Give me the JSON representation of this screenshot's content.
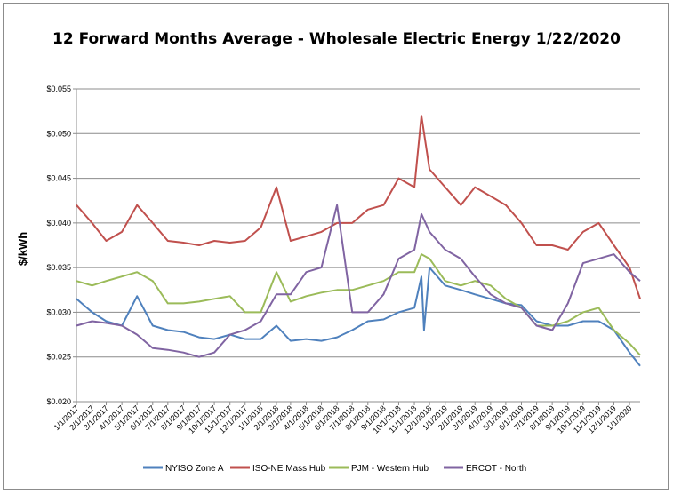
{
  "chart_data": {
    "type": "line",
    "title": "12 Forward Months Average - Wholesale Electric Energy 1/22/2020",
    "ylabel": "$/kWh",
    "xlabel": "",
    "ylim": [
      0.02,
      0.055
    ],
    "yticks": [
      "$0.020",
      "$0.025",
      "$0.030",
      "$0.035",
      "$0.040",
      "$0.045",
      "$0.050",
      "$0.055"
    ],
    "x_tick_labels": [
      "1/1/2017",
      "2/1/2017",
      "3/1/2017",
      "4/1/2017",
      "5/1/2017",
      "6/1/2017",
      "7/1/2017",
      "8/1/2017",
      "9/1/2017",
      "10/1/2017",
      "11/1/2017",
      "12/1/2017",
      "1/1/2018",
      "2/1/2018",
      "3/1/2018",
      "4/1/2018",
      "5/1/2018",
      "6/1/2018",
      "7/1/2018",
      "8/1/2018",
      "9/1/2018",
      "10/1/2018",
      "11/1/2018",
      "12/1/2018",
      "1/1/2019",
      "2/1/2019",
      "3/1/2019",
      "4/1/2019",
      "5/1/2019",
      "6/1/2019",
      "7/1/2019",
      "8/1/2019",
      "9/1/2019",
      "10/1/2019",
      "11/1/2019",
      "12/1/2019",
      "1/1/2020"
    ],
    "grid": true,
    "legend_position": "bottom",
    "series": [
      {
        "name": "NYISO Zone A",
        "color": "#4f81bd",
        "x": [
          "2017-01-01",
          "2017-02-01",
          "2017-03-01",
          "2017-04-01",
          "2017-05-01",
          "2017-06-01",
          "2017-07-01",
          "2017-08-01",
          "2017-09-01",
          "2017-10-01",
          "2017-11-01",
          "2017-12-01",
          "2018-01-01",
          "2018-02-01",
          "2018-03-01",
          "2018-04-01",
          "2018-05-01",
          "2018-06-01",
          "2018-07-01",
          "2018-08-01",
          "2018-09-01",
          "2018-10-01",
          "2018-11-01",
          "2018-11-15",
          "2018-11-20",
          "2018-12-01",
          "2019-01-01",
          "2019-02-01",
          "2019-03-01",
          "2019-04-01",
          "2019-05-01",
          "2019-06-01",
          "2019-07-01",
          "2019-08-01",
          "2019-09-01",
          "2019-10-01",
          "2019-11-01",
          "2019-12-01",
          "2020-01-01",
          "2020-01-22"
        ],
        "values": [
          0.0315,
          0.03,
          0.029,
          0.0285,
          0.0318,
          0.0285,
          0.028,
          0.0278,
          0.0272,
          0.027,
          0.0275,
          0.027,
          0.027,
          0.0285,
          0.0268,
          0.027,
          0.0268,
          0.0272,
          0.028,
          0.029,
          0.0292,
          0.03,
          0.0305,
          0.034,
          0.028,
          0.035,
          0.033,
          0.0325,
          0.032,
          0.0315,
          0.031,
          0.0308,
          0.029,
          0.0285,
          0.0285,
          0.029,
          0.029,
          0.028,
          0.0255,
          0.024
        ]
      },
      {
        "name": "ISO-NE Mass Hub",
        "color": "#c0504d",
        "x": [
          "2017-01-01",
          "2017-02-01",
          "2017-03-01",
          "2017-04-01",
          "2017-05-01",
          "2017-06-01",
          "2017-07-01",
          "2017-08-01",
          "2017-09-01",
          "2017-10-01",
          "2017-11-01",
          "2017-12-01",
          "2018-01-01",
          "2018-02-01",
          "2018-03-01",
          "2018-04-01",
          "2018-05-01",
          "2018-06-01",
          "2018-07-01",
          "2018-08-01",
          "2018-09-01",
          "2018-10-01",
          "2018-11-01",
          "2018-11-15",
          "2018-12-01",
          "2019-01-01",
          "2019-02-01",
          "2019-03-01",
          "2019-04-01",
          "2019-05-01",
          "2019-06-01",
          "2019-07-01",
          "2019-08-01",
          "2019-09-01",
          "2019-10-01",
          "2019-11-01",
          "2019-12-01",
          "2020-01-01",
          "2020-01-22"
        ],
        "values": [
          0.042,
          0.04,
          0.038,
          0.039,
          0.042,
          0.04,
          0.038,
          0.0378,
          0.0375,
          0.038,
          0.0378,
          0.038,
          0.0395,
          0.044,
          0.038,
          0.0385,
          0.039,
          0.04,
          0.04,
          0.0415,
          0.042,
          0.045,
          0.044,
          0.052,
          0.046,
          0.044,
          0.042,
          0.044,
          0.043,
          0.042,
          0.04,
          0.0375,
          0.0375,
          0.037,
          0.039,
          0.04,
          0.0375,
          0.035,
          0.0315
        ]
      },
      {
        "name": "PJM - Western Hub",
        "color": "#9bbb59",
        "x": [
          "2017-01-01",
          "2017-02-01",
          "2017-03-01",
          "2017-04-01",
          "2017-05-01",
          "2017-06-01",
          "2017-07-01",
          "2017-08-01",
          "2017-09-01",
          "2017-10-01",
          "2017-11-01",
          "2017-12-01",
          "2018-01-01",
          "2018-02-01",
          "2018-03-01",
          "2018-04-01",
          "2018-05-01",
          "2018-06-01",
          "2018-07-01",
          "2018-08-01",
          "2018-09-01",
          "2018-10-01",
          "2018-11-01",
          "2018-11-15",
          "2018-12-01",
          "2019-01-01",
          "2019-02-01",
          "2019-03-01",
          "2019-04-01",
          "2019-05-01",
          "2019-06-01",
          "2019-07-01",
          "2019-08-01",
          "2019-09-01",
          "2019-10-01",
          "2019-11-01",
          "2019-12-01",
          "2020-01-01",
          "2020-01-22"
        ],
        "values": [
          0.0335,
          0.033,
          0.0335,
          0.034,
          0.0345,
          0.0335,
          0.031,
          0.031,
          0.0312,
          0.0315,
          0.0318,
          0.03,
          0.03,
          0.0345,
          0.0312,
          0.0318,
          0.0322,
          0.0325,
          0.0325,
          0.033,
          0.0335,
          0.0345,
          0.0345,
          0.0365,
          0.036,
          0.0335,
          0.033,
          0.0335,
          0.033,
          0.0315,
          0.0305,
          0.0285,
          0.0285,
          0.029,
          0.03,
          0.0305,
          0.028,
          0.0265,
          0.0252
        ]
      },
      {
        "name": "ERCOT - North",
        "color": "#8064a2",
        "x": [
          "2017-01-01",
          "2017-02-01",
          "2017-03-01",
          "2017-04-01",
          "2017-05-01",
          "2017-06-01",
          "2017-07-01",
          "2017-08-01",
          "2017-09-01",
          "2017-10-01",
          "2017-11-01",
          "2017-12-01",
          "2018-01-01",
          "2018-02-01",
          "2018-03-01",
          "2018-04-01",
          "2018-05-01",
          "2018-06-01",
          "2018-07-01",
          "2018-08-01",
          "2018-09-01",
          "2018-10-01",
          "2018-11-01",
          "2018-11-15",
          "2018-12-01",
          "2019-01-01",
          "2019-02-01",
          "2019-03-01",
          "2019-04-01",
          "2019-05-01",
          "2019-06-01",
          "2019-07-01",
          "2019-08-01",
          "2019-09-01",
          "2019-10-01",
          "2019-11-01",
          "2019-12-01",
          "2020-01-01",
          "2020-01-22"
        ],
        "values": [
          0.0285,
          0.029,
          0.0288,
          0.0285,
          0.0275,
          0.026,
          0.0258,
          0.0255,
          0.025,
          0.0255,
          0.0275,
          0.028,
          0.029,
          0.032,
          0.032,
          0.0345,
          0.035,
          0.042,
          0.03,
          0.03,
          0.032,
          0.036,
          0.037,
          0.041,
          0.039,
          0.037,
          0.036,
          0.034,
          0.032,
          0.031,
          0.0305,
          0.0285,
          0.028,
          0.031,
          0.0355,
          0.036,
          0.0365,
          0.0345,
          0.0335
        ]
      }
    ]
  }
}
